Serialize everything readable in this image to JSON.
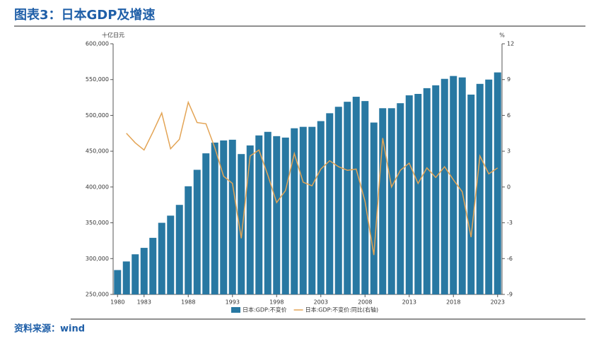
{
  "title": "图表3：日本GDP及增速",
  "source": "资料来源：wind",
  "chart_data": {
    "type": "combo",
    "y_label": "十亿日元",
    "y2_label": "%",
    "x": [
      1980,
      1981,
      1982,
      1983,
      1984,
      1985,
      1986,
      1987,
      1988,
      1989,
      1990,
      1991,
      1992,
      1993,
      1994,
      1995,
      1996,
      1997,
      1998,
      1999,
      2000,
      2001,
      2002,
      2003,
      2004,
      2005,
      2006,
      2007,
      2008,
      2009,
      2010,
      2011,
      2012,
      2013,
      2014,
      2015,
      2016,
      2017,
      2018,
      2019,
      2020,
      2021,
      2022,
      2023
    ],
    "xlim": [
      1979.5,
      2023.5
    ],
    "xticks": [
      1980,
      1983,
      1988,
      1993,
      1998,
      2003,
      2008,
      2013,
      2018,
      2023
    ],
    "ylim": [
      250000,
      600000
    ],
    "yticks": [
      {
        "value": 250000,
        "label": "250,000"
      },
      {
        "value": 300000,
        "label": "300,000"
      },
      {
        "value": 350000,
        "label": "350,000"
      },
      {
        "value": 400000,
        "label": "400,000"
      },
      {
        "value": 450000,
        "label": "450,000"
      },
      {
        "value": 500000,
        "label": "500,000"
      },
      {
        "value": 550000,
        "label": "550,000"
      },
      {
        "value": 600000,
        "label": "600,000"
      }
    ],
    "y2lim": [
      -9,
      12
    ],
    "y2ticks": [
      -9,
      -6,
      -3,
      0,
      3,
      6,
      9,
      12
    ],
    "legend": "bottom",
    "series": [
      {
        "name": "日本:GDP:不变价",
        "type": "bar",
        "color": "#2878a2",
        "values": [
          284000,
          296000,
          306000,
          315000,
          329000,
          350000,
          360000,
          375000,
          401000,
          424000,
          447000,
          462000,
          465000,
          466000,
          446000,
          458000,
          472000,
          477000,
          471000,
          469000,
          482000,
          484000,
          484000,
          492000,
          503000,
          512000,
          519000,
          526000,
          520000,
          490000,
          510000,
          510000,
          517000,
          528000,
          530000,
          538000,
          542000,
          551000,
          555000,
          553000,
          529000,
          544000,
          550000,
          560000
        ]
      },
      {
        "name": "日本:GDP:不变价:同比(右轴)",
        "type": "line",
        "axis": "y2",
        "color": "#e3a455",
        "values": [
          null,
          4.5,
          3.7,
          3.1,
          4.6,
          6.2,
          3.2,
          4.0,
          7.1,
          5.4,
          5.3,
          3.3,
          0.9,
          0.3,
          -4.3,
          2.6,
          3.1,
          1.0,
          -1.3,
          -0.3,
          2.8,
          0.4,
          0.1,
          1.5,
          2.2,
          1.7,
          1.4,
          1.5,
          -1.2,
          -5.7,
          4.1,
          0.0,
          1.4,
          2.0,
          0.3,
          1.6,
          0.8,
          1.7,
          0.6,
          -0.4,
          -4.2,
          2.6,
          1.1,
          1.6
        ]
      }
    ]
  }
}
